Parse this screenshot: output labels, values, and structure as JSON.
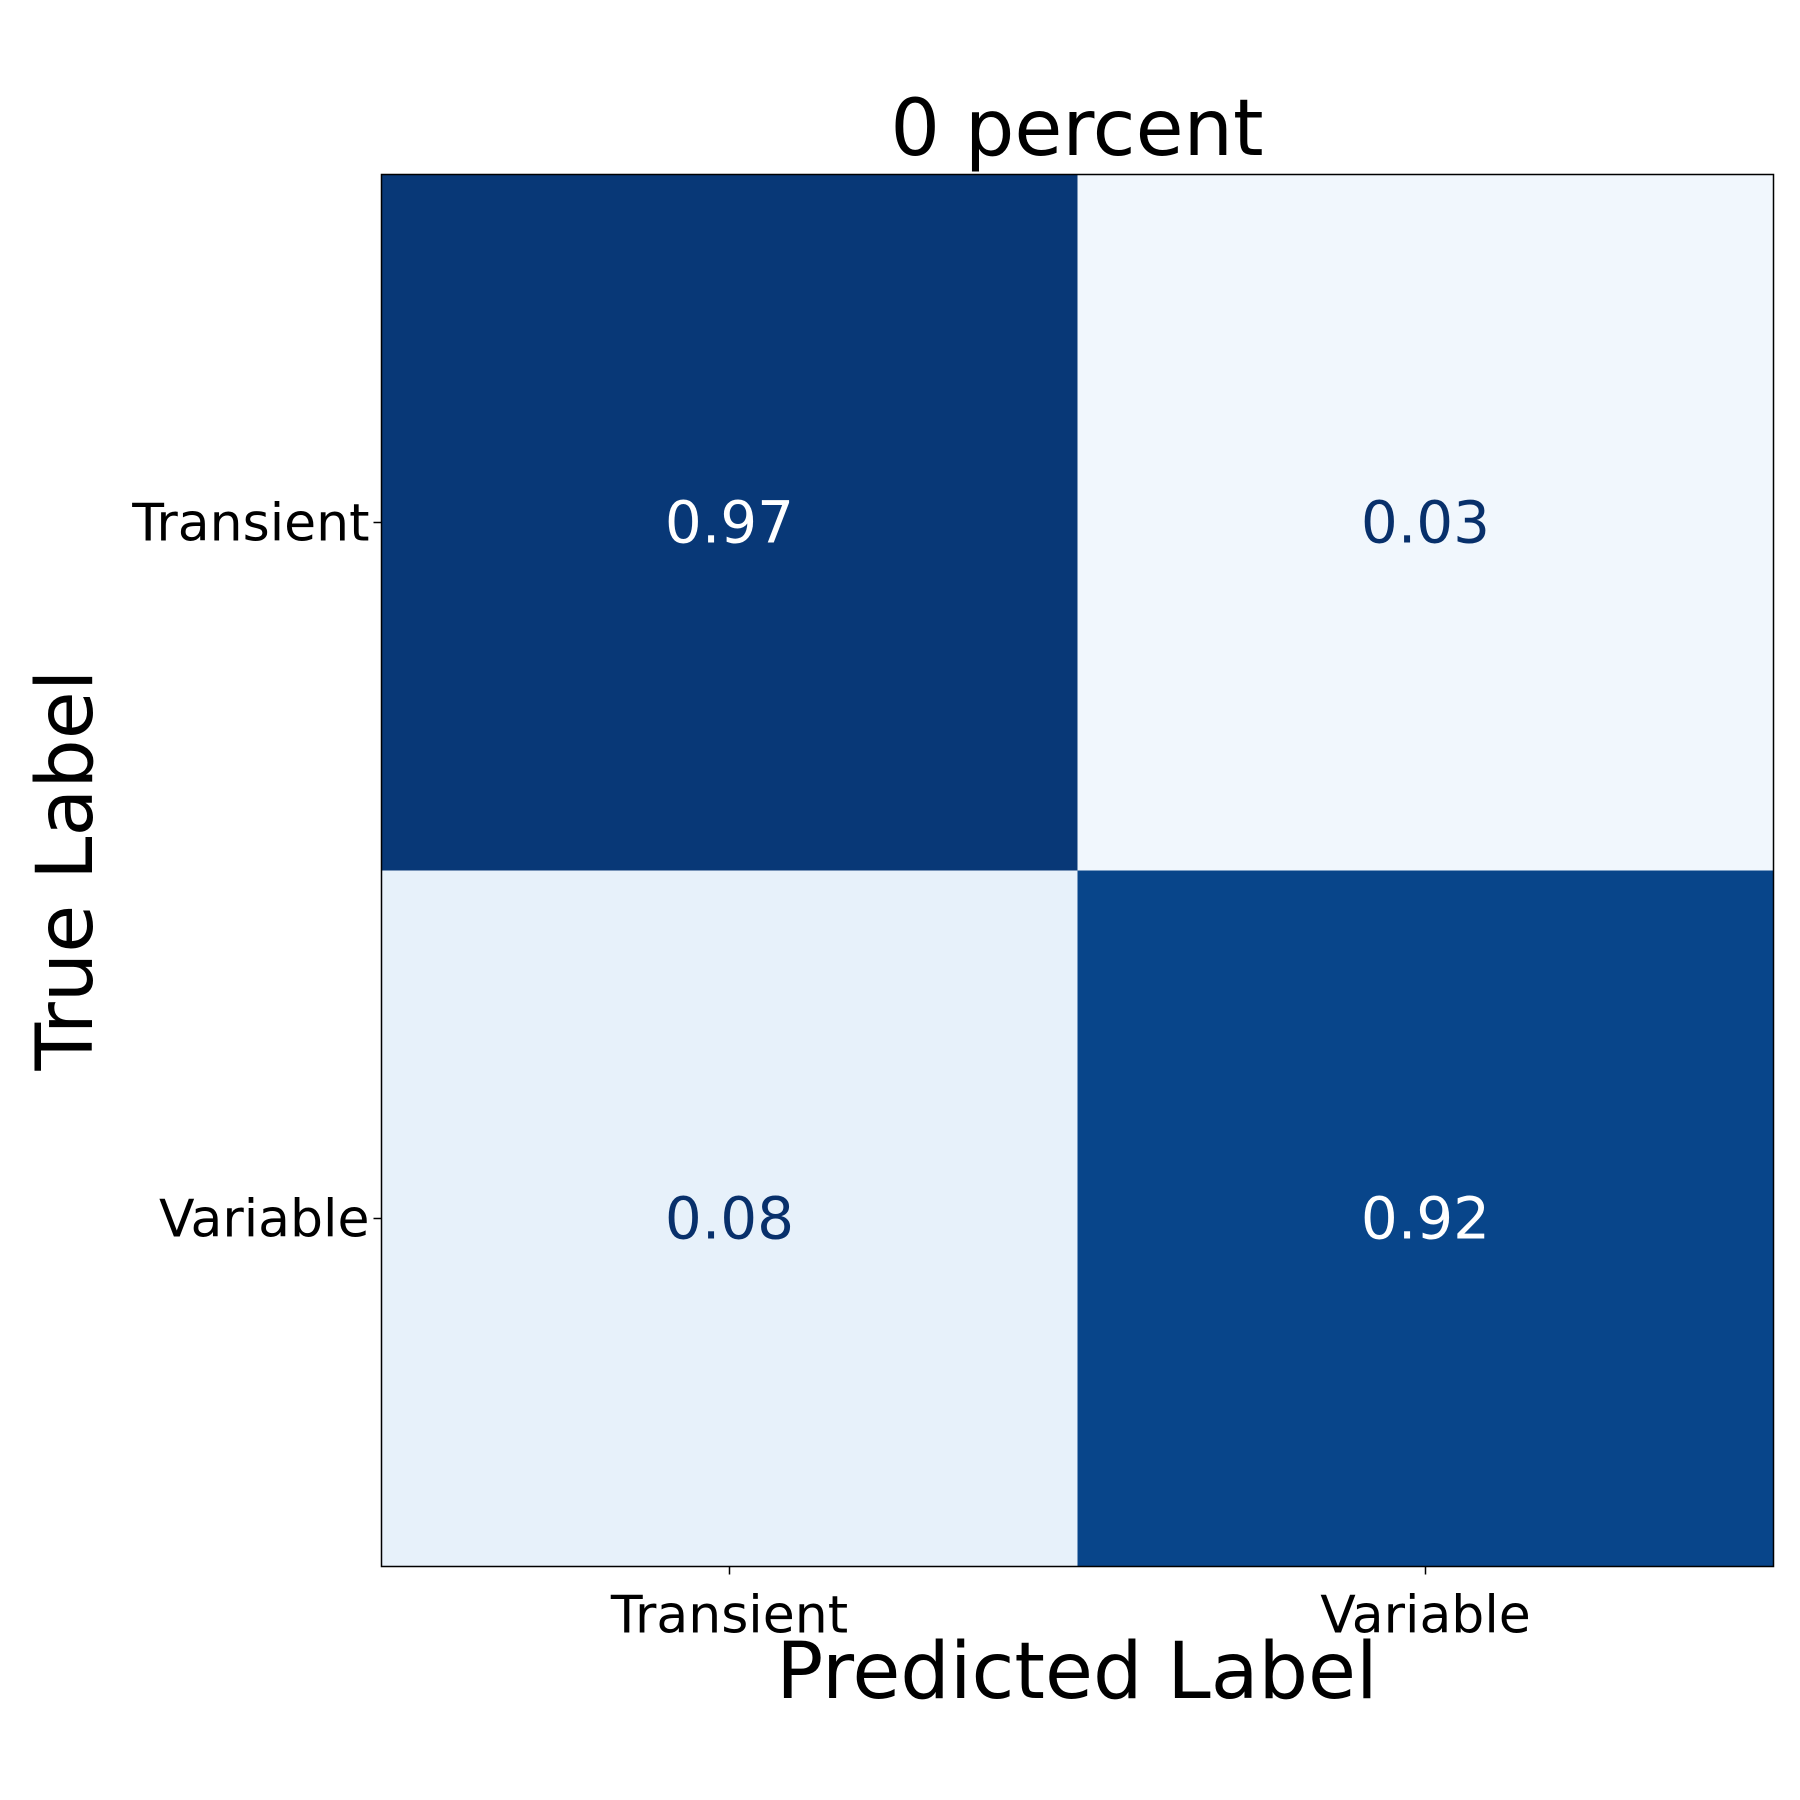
{
  "chart_data": {
    "type": "heatmap",
    "title": "0 percent",
    "xlabel": "Predicted Label",
    "ylabel": "True Label",
    "x_categories": [
      "Transient",
      "Variable"
    ],
    "y_categories": [
      "Transient",
      "Variable"
    ],
    "matrix": [
      [
        0.97,
        0.03
      ],
      [
        0.08,
        0.92
      ]
    ],
    "cell_labels": [
      [
        "0.97",
        "0.03"
      ],
      [
        "0.08",
        "0.92"
      ]
    ],
    "colormap": "Blues",
    "value_range": [
      0,
      1
    ],
    "colors": {
      "light_text": "#ffffff",
      "dark_text": "#08306b",
      "frame": "#000000"
    }
  }
}
